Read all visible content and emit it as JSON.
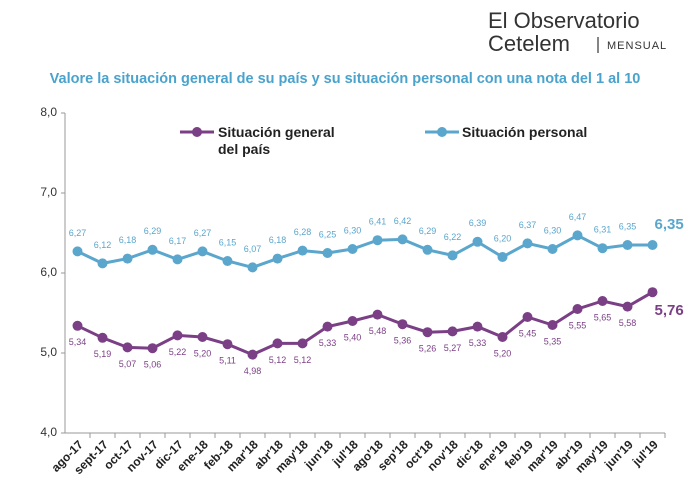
{
  "brand": {
    "line1": "El Observatorio",
    "line2": "Cetelem",
    "edition": "MENSUAL"
  },
  "chart_data": {
    "type": "line",
    "title": "Valore la situación general de su país y su situación personal con una nota del 1 al 10",
    "categories": [
      "ago-17",
      "sept-17",
      "oct-17",
      "nov-17",
      "dic-17",
      "ene-18",
      "feb-18",
      "mar'18",
      "abr'18",
      "may'18",
      "jun'18",
      "jul'18",
      "ago'18",
      "sep'18",
      "oct'18",
      "nov'18",
      "dic'18",
      "ene'19",
      "feb'19",
      "mar'19",
      "abr'19",
      "may'19",
      "jun'19",
      "jul'19"
    ],
    "series": [
      {
        "name": "Situación general del país",
        "color": "#7b3f86",
        "values": [
          5.34,
          5.19,
          5.07,
          5.06,
          5.22,
          5.2,
          5.11,
          4.98,
          5.12,
          5.12,
          5.33,
          5.4,
          5.48,
          5.36,
          5.26,
          5.27,
          5.33,
          5.2,
          5.45,
          5.35,
          5.55,
          5.65,
          5.58,
          5.76
        ],
        "value_labels": [
          "5,34",
          "5,19",
          "5,07",
          "5,06",
          "5,22",
          "5,20",
          "5,11",
          "4,98",
          "5,12",
          "5,12",
          "5,33",
          "5,40",
          "5,48",
          "5,36",
          "5,26",
          "5,27",
          "5,33",
          "5,20",
          "5,45",
          "5,35",
          "5,55",
          "5,65",
          "5,58",
          "5,76"
        ]
      },
      {
        "name": "Situación personal",
        "color": "#5aa6cc",
        "values": [
          6.27,
          6.12,
          6.18,
          6.29,
          6.17,
          6.27,
          6.15,
          6.07,
          6.18,
          6.28,
          6.25,
          6.3,
          6.41,
          6.42,
          6.29,
          6.22,
          6.39,
          6.2,
          6.37,
          6.3,
          6.47,
          6.31,
          6.35,
          6.35
        ],
        "value_labels": [
          "6,27",
          "6,12",
          "6,18",
          "6,29",
          "6,17",
          "6,27",
          "6,15",
          "6,07",
          "6,18",
          "6,28",
          "6,25",
          "6,30",
          "6,41",
          "6,42",
          "6,29",
          "6,22",
          "6,39",
          "6,20",
          "6,37",
          "6,30",
          "6,47",
          "6,31",
          "6,35",
          "6,35"
        ]
      }
    ],
    "ylim": [
      4.0,
      8.0
    ],
    "yticks": [
      {
        "value": 4.0,
        "label": "4,0"
      },
      {
        "value": 5.0,
        "label": "5,0"
      },
      {
        "value": 6.0,
        "label": "6,0"
      },
      {
        "value": 7.0,
        "label": "7,0"
      },
      {
        "value": 8.0,
        "label": "8,0"
      }
    ],
    "grid": false
  }
}
